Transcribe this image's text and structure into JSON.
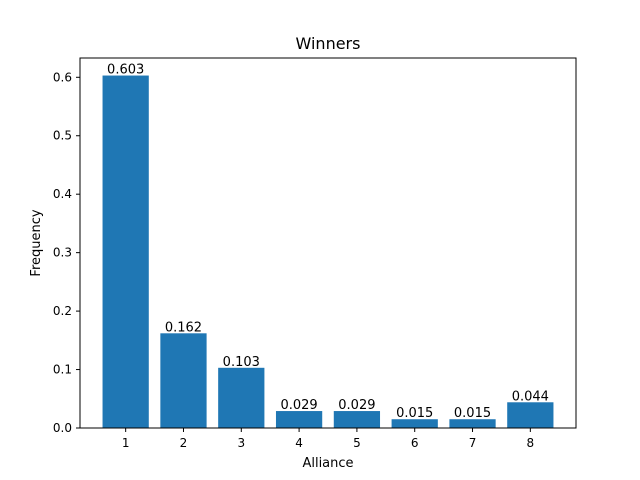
{
  "chart_data": {
    "type": "bar",
    "title": "Winners",
    "xlabel": "Alliance",
    "ylabel": "Frequency",
    "categories": [
      "1",
      "2",
      "3",
      "4",
      "5",
      "6",
      "7",
      "8"
    ],
    "values": [
      0.603,
      0.162,
      0.103,
      0.029,
      0.029,
      0.015,
      0.015,
      0.044
    ],
    "data_labels": [
      "0.603",
      "0.162",
      "0.103",
      "0.029",
      "0.029",
      "0.015",
      "0.015",
      "0.044"
    ],
    "ylim": [
      0,
      0.633
    ],
    "yticks": [
      0.0,
      0.1,
      0.2,
      0.3,
      0.4,
      0.5,
      0.6
    ],
    "ytick_labels": [
      "0.0",
      "0.1",
      "0.2",
      "0.3",
      "0.4",
      "0.5",
      "0.6"
    ],
    "bar_color": "#1f77b4",
    "grid": false,
    "legend": "none"
  }
}
